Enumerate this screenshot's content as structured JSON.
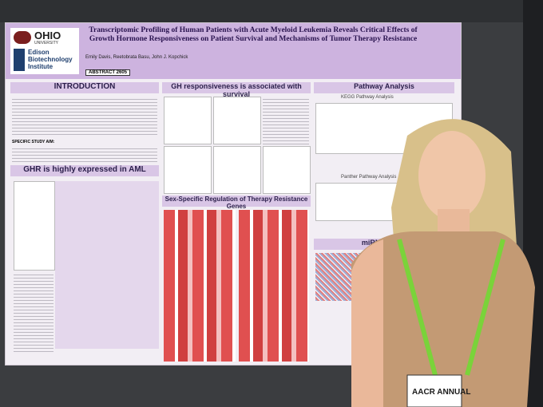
{
  "poster": {
    "logo": {
      "name": "OHIO",
      "sub": "UNIVERSITY",
      "institute": "Edison Biotechnology Institute"
    },
    "title": "Transcriptomic Profiling of Human Patients with Acute Myeloid Leukemia Reveals Critical Effects of Growth Hormone Responsiveness on Patient Survival and Mechanisms of Tumor Therapy Resistance",
    "authors": "Emily Davis, Reetobrata Basu, John J. Kopchick",
    "abstract": "ABSTRACT 2605",
    "sections": {
      "introduction": "INTRODUCTION",
      "aim": "SPECIFIC STUDY AIM:",
      "ghr": "GHR is highly expressed in AML",
      "survival": "GH responsiveness is associated with survival",
      "sex": "Sex-Specific Regulation of Therapy Resistance Genes",
      "pathway": "Pathway Analysis",
      "kegg": "KEGG Pathway Analysis",
      "panther": "Panther Pathway Analysis",
      "mirna": "miRNA Analy"
    },
    "badge": "AACR ANNUAL"
  }
}
